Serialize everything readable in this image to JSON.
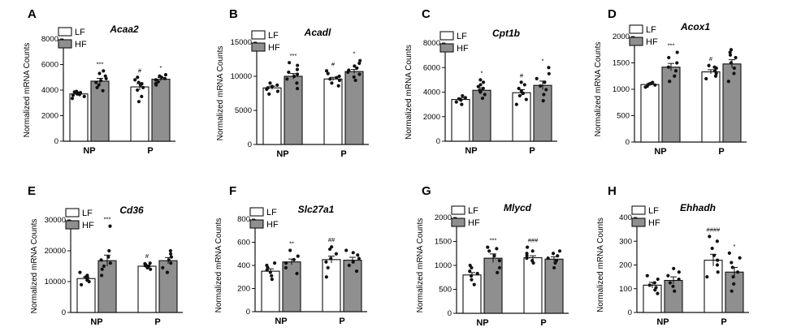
{
  "colors": {
    "LF": "#ffffff",
    "HF": "#8f8f8f",
    "axis": "#111111",
    "dot": "#111111"
  },
  "chart_data": [
    {
      "panel": "A",
      "title": "Acaa2",
      "type": "bar",
      "ylabel": "Normalized mRNA Counts",
      "ylim": [
        0,
        8000
      ],
      "yticks": [
        "0",
        "2000",
        "4000",
        "6000",
        "8000"
      ],
      "ytick_values": [
        0,
        2000,
        4000,
        6000,
        8000
      ],
      "categories": [
        "NP",
        "P"
      ],
      "legend": [
        "LF",
        "HF"
      ],
      "series": [
        {
          "name": "LF",
          "values": [
            3700,
            4250
          ],
          "errors": [
            100,
            250
          ],
          "points": [
            [
              3350,
              3500,
              3600,
              3650,
              3700,
              3750,
              3800,
              3850,
              3900
            ],
            [
              3100,
              3500,
              4000,
              4200,
              4400,
              4500,
              4600,
              4800,
              5000
            ]
          ],
          "sig": [
            "",
            "#"
          ]
        },
        {
          "name": "HF",
          "values": [
            4700,
            4850
          ],
          "errors": [
            220,
            130
          ],
          "points": [
            [
              3950,
              4200,
              4400,
              4600,
              4750,
              4900,
              5100,
              5300,
              5500
            ],
            [
              4400,
              4500,
              4650,
              4800,
              4900,
              5000,
              5100,
              5200
            ]
          ],
          "sig": [
            "***",
            "*"
          ]
        }
      ]
    },
    {
      "panel": "B",
      "title": "Acadl",
      "type": "bar",
      "ylabel": "Normalized mRNA Counts",
      "ylim": [
        0,
        15000
      ],
      "yticks": [
        "0",
        "5000",
        "10000",
        "15000"
      ],
      "ytick_values": [
        0,
        5000,
        10000,
        15000
      ],
      "categories": [
        "NP",
        "P"
      ],
      "legend": [
        "LF",
        "HF"
      ],
      "series": [
        {
          "name": "LF",
          "values": [
            8300,
            9600
          ],
          "errors": [
            250,
            250
          ],
          "points": [
            [
              7400,
              7800,
              8100,
              8300,
              8500,
              8700,
              9000
            ],
            [
              8600,
              9000,
              9400,
              9600,
              9800,
              10000,
              10400,
              10800
            ]
          ],
          "sig": [
            "",
            "#"
          ]
        },
        {
          "name": "HF",
          "values": [
            10000,
            10700
          ],
          "errors": [
            400,
            300
          ],
          "points": [
            [
              8200,
              9000,
              9600,
              10000,
              10300,
              10600,
              11000,
              11600,
              12000
            ],
            [
              9400,
              9900,
              10300,
              10600,
              10900,
              11200,
              11500,
              11900,
              12300
            ]
          ],
          "sig": [
            "***",
            "*"
          ]
        }
      ]
    },
    {
      "panel": "C",
      "title": "Cpt1b",
      "type": "bar",
      "ylabel": "Normalized mRNA Counts",
      "ylim": [
        0,
        8000
      ],
      "yticks": [
        "0",
        "2000",
        "4000",
        "6000",
        "8000"
      ],
      "ytick_values": [
        0,
        2000,
        4000,
        6000,
        8000
      ],
      "categories": [
        "NP",
        "P"
      ],
      "legend": [
        "LF",
        "HF"
      ],
      "series": [
        {
          "name": "LF",
          "values": [
            3400,
            3950
          ],
          "errors": [
            120,
            250
          ],
          "points": [
            [
              3000,
              3200,
              3350,
              3450,
              3550,
              3700
            ],
            [
              3000,
              3400,
              3700,
              3900,
              4100,
              4300,
              4600,
              4800
            ]
          ],
          "sig": [
            "",
            "#"
          ]
        },
        {
          "name": "HF",
          "values": [
            4150,
            4550
          ],
          "errors": [
            200,
            350
          ],
          "points": [
            [
              3500,
              3800,
              4000,
              4150,
              4300,
              4450,
              4600,
              4800,
              5000
            ],
            [
              3300,
              3800,
              4200,
              4500,
              4800,
              5100,
              5500,
              6000
            ]
          ],
          "sig": [
            "*",
            "*"
          ]
        }
      ]
    },
    {
      "panel": "D",
      "title": "Acox1",
      "type": "bar",
      "ylabel": "Normalized mRNA Counts",
      "ylim": [
        0,
        2000
      ],
      "yticks": [
        "0",
        "500",
        "1000",
        "1500",
        "2000"
      ],
      "ytick_values": [
        0,
        500,
        1000,
        1500,
        2000
      ],
      "categories": [
        "NP",
        "P"
      ],
      "legend": [
        "LF",
        "HF"
      ],
      "series": [
        {
          "name": "LF",
          "values": [
            1090,
            1330
          ],
          "errors": [
            20,
            40
          ],
          "points": [
            [
              1040,
              1060,
              1080,
              1100,
              1110,
              1130
            ],
            [
              1200,
              1250,
              1300,
              1350,
              1400,
              1420,
              1450
            ]
          ],
          "sig": [
            "",
            "#"
          ]
        },
        {
          "name": "HF",
          "values": [
            1420,
            1480
          ],
          "errors": [
            70,
            80
          ],
          "points": [
            [
              1150,
              1250,
              1350,
              1420,
              1500,
              1600,
              1700
            ],
            [
              1150,
              1300,
              1400,
              1500,
              1600,
              1650,
              1700,
              1750
            ]
          ],
          "sig": [
            "***",
            ""
          ]
        }
      ]
    },
    {
      "panel": "E",
      "title": "Cd36",
      "type": "bar",
      "ylabel": "Normalized mRNA Counts",
      "ylim": [
        0,
        30000
      ],
      "yticks": [
        "0",
        "10000",
        "20000",
        "30000"
      ],
      "ytick_values": [
        0,
        10000,
        20000,
        30000
      ],
      "categories": [
        "NP",
        "P"
      ],
      "legend": [
        "LF",
        "HF"
      ],
      "series": [
        {
          "name": "LF",
          "values": [
            11000,
            15000
          ],
          "errors": [
            500,
            400
          ],
          "points": [
            [
              9000,
              10000,
              10500,
              11000,
              11500,
              12000,
              13000
            ],
            [
              14000,
              14500,
              15000,
              15200,
              15500,
              15800,
              16000
            ]
          ],
          "sig": [
            "",
            "#"
          ]
        },
        {
          "name": "HF",
          "values": [
            16800,
            16800
          ],
          "errors": [
            1800,
            1000
          ],
          "points": [
            [
              12000,
              14000,
              15000,
              16000,
              17000,
              18000,
              20000,
              28000
            ],
            [
              13000,
              14500,
              16000,
              17000,
              18000,
              19000,
              20000
            ]
          ],
          "sig": [
            "***",
            ""
          ]
        }
      ]
    },
    {
      "panel": "F",
      "title": "Slc27a1",
      "type": "bar",
      "ylabel": "Normalized mRNA Counts",
      "ylim": [
        0,
        800
      ],
      "yticks": [
        "0",
        "200",
        "400",
        "600",
        "800"
      ],
      "ytick_values": [
        0,
        200,
        400,
        600,
        800
      ],
      "categories": [
        "NP",
        "P"
      ],
      "legend": [
        "LF",
        "HF"
      ],
      "series": [
        {
          "name": "LF",
          "values": [
            350,
            450
          ],
          "errors": [
            20,
            30
          ],
          "points": [
            [
              280,
              310,
              340,
              360,
              380,
              400,
              420
            ],
            [
              300,
              380,
              430,
              460,
              500,
              540,
              560
            ]
          ],
          "sig": [
            "",
            "##"
          ]
        },
        {
          "name": "HF",
          "values": [
            430,
            445
          ],
          "errors": [
            25,
            25
          ],
          "points": [
            [
              330,
              380,
              420,
              450,
              480,
              530
            ],
            [
              350,
              400,
              430,
              460,
              490,
              510,
              530
            ]
          ],
          "sig": [
            "**",
            ""
          ]
        }
      ]
    },
    {
      "panel": "G",
      "title": "Mlycd",
      "type": "bar",
      "ylabel": "Normalized mRNA Counts",
      "ylim": [
        0,
        2000
      ],
      "yticks": [
        "0",
        "500",
        "1000",
        "1500",
        "2000"
      ],
      "ytick_values": [
        0,
        500,
        1000,
        1500,
        2000
      ],
      "categories": [
        "NP",
        "P"
      ],
      "legend": [
        "LF",
        "HF"
      ],
      "series": [
        {
          "name": "LF",
          "values": [
            800,
            1160
          ],
          "errors": [
            50,
            40
          ],
          "points": [
            [
              600,
              700,
              780,
              830,
              880,
              950,
              1000
            ],
            [
              1050,
              1100,
              1150,
              1200,
              1250,
              1300,
              1380
            ]
          ],
          "sig": [
            "",
            "###"
          ]
        },
        {
          "name": "HF",
          "values": [
            1150,
            1130
          ],
          "errors": [
            90,
            50
          ],
          "points": [
            [
              850,
              950,
              1100,
              1200,
              1300,
              1350,
              1380
            ],
            [
              950,
              1050,
              1100,
              1150,
              1200,
              1250,
              1300
            ]
          ],
          "sig": [
            "***",
            ""
          ]
        }
      ]
    },
    {
      "panel": "H",
      "title": "Ehhadh",
      "type": "bar",
      "ylabel": "Normalized mRNA Counts",
      "ylim": [
        0,
        400
      ],
      "yticks": [
        "0",
        "100",
        "200",
        "300",
        "400"
      ],
      "ytick_values": [
        0,
        100,
        200,
        300,
        400
      ],
      "categories": [
        "NP",
        "P"
      ],
      "legend": [
        "LF",
        "HF"
      ],
      "series": [
        {
          "name": "LF",
          "values": [
            115,
            220
          ],
          "errors": [
            12,
            25
          ],
          "points": [
            [
              80,
              95,
              105,
              115,
              125,
              140,
              155
            ],
            [
              150,
              170,
              200,
              220,
              240,
              270,
              300,
              320
            ]
          ],
          "sig": [
            "",
            "####"
          ]
        },
        {
          "name": "HF",
          "values": [
            135,
            170
          ],
          "errors": [
            15,
            20
          ],
          "points": [
            [
              90,
              110,
              125,
              140,
              155,
              170,
              185
            ],
            [
              90,
              120,
              150,
              170,
              190,
              210,
              230,
              250
            ]
          ],
          "sig": [
            "",
            "*"
          ]
        }
      ]
    }
  ]
}
